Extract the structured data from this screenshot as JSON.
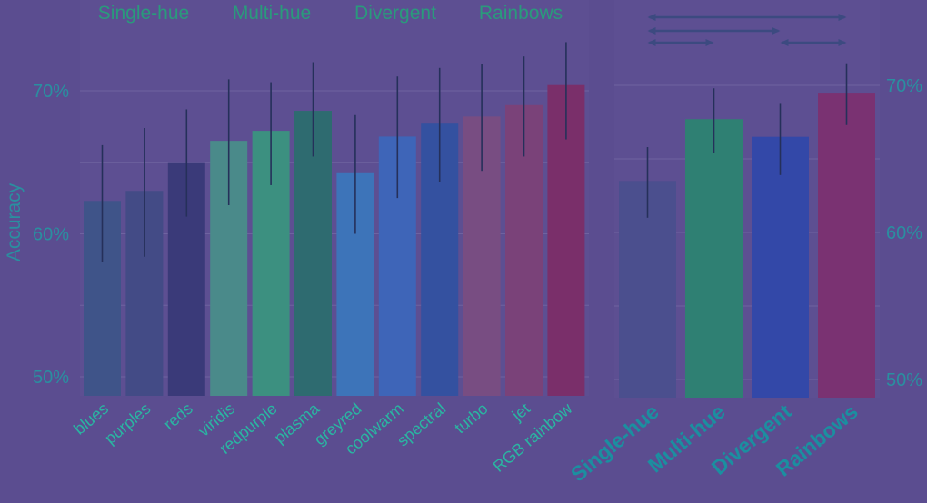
{
  "chart_data": [
    {
      "type": "bar",
      "title": "",
      "ylabel": "Accuracy",
      "ylim": [
        49,
        72
      ],
      "yticks": [
        "50%",
        "60%",
        "70%"
      ],
      "ytick_values": [
        50,
        60,
        70
      ],
      "group_labels": [
        "Single-hue",
        "Multi-hue",
        "Divergent",
        "Rainbows"
      ],
      "categories": [
        "blues",
        "purples",
        "reds",
        "viridis",
        "redpurple",
        "plasma",
        "greyred",
        "coolwarm",
        "spectral",
        "turbo",
        "jet",
        "RGB rainbow"
      ],
      "values": [
        62.3,
        63.0,
        65.0,
        66.5,
        67.2,
        68.6,
        64.3,
        66.8,
        67.7,
        68.2,
        69.0,
        70.4
      ],
      "error_low": [
        58.0,
        58.4,
        61.2,
        62.0,
        63.4,
        65.4,
        60.0,
        62.5,
        63.6,
        64.4,
        65.4,
        66.6
      ],
      "error_high": [
        66.2,
        67.4,
        68.7,
        70.8,
        70.6,
        72.0,
        68.3,
        71.0,
        71.6,
        71.9,
        72.4,
        73.4
      ],
      "colors": [
        "#3f5489",
        "#434b86",
        "#3a3a79",
        "#4a8a8a",
        "#3c9080",
        "#2e6b70",
        "#3d74b9",
        "#3e65b8",
        "#3451a0",
        "#784d82",
        "#7a4279",
        "#7a2f6a"
      ]
    },
    {
      "type": "bar",
      "title": "",
      "ylabel": "",
      "ylim": [
        49,
        72
      ],
      "yticks": [
        "50%",
        "60%",
        "70%"
      ],
      "ytick_values": [
        50,
        60,
        70
      ],
      "categories": [
        "Single-hue",
        "Multi-hue",
        "Divergent",
        "Rainbows"
      ],
      "values": [
        63.5,
        67.7,
        66.5,
        69.5
      ],
      "error_low": [
        61.0,
        65.4,
        63.9,
        67.3
      ],
      "error_high": [
        65.8,
        69.8,
        68.8,
        71.5
      ],
      "colors": [
        "#4b4f8e",
        "#2f8073",
        "#3348a8",
        "#7a3272"
      ],
      "comparisons": [
        [
          0,
          3
        ],
        [
          0,
          2
        ],
        [
          0,
          1
        ],
        [
          2,
          3
        ]
      ]
    }
  ]
}
